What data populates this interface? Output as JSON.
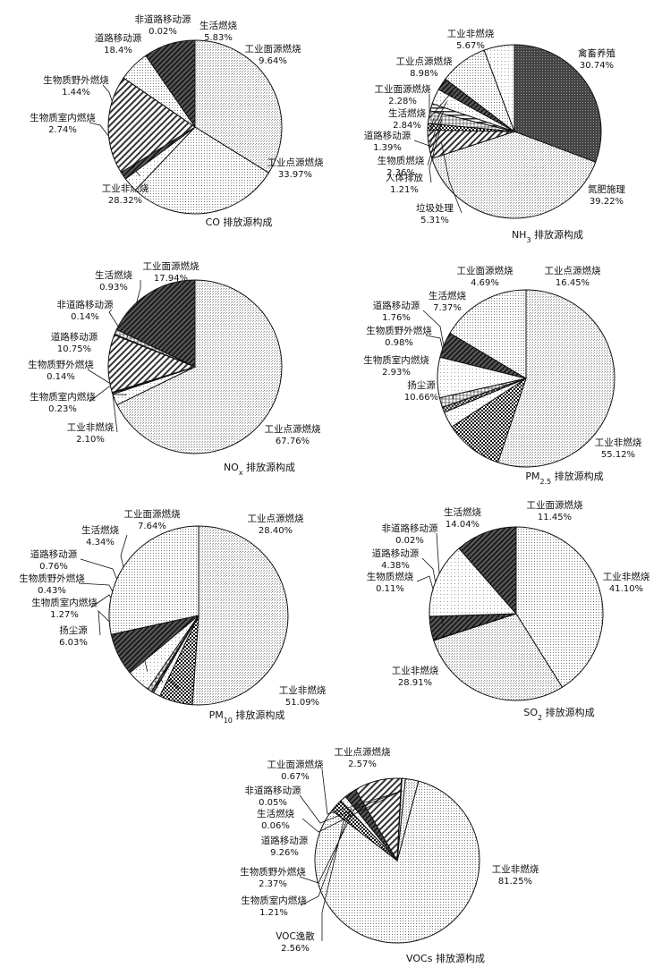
{
  "chart_data": [
    {
      "type": "pie",
      "title": "CO 排放源构成",
      "labels": [
        "工业点源燃烧",
        "工业非燃烧",
        "生物质室内燃烧",
        "生物质野外燃烧",
        "道路移动源",
        "非道路移动源",
        "生活燃烧",
        "工业面源燃烧"
      ],
      "values": [
        33.97,
        28.32,
        2.74,
        1.44,
        18.4,
        0.02,
        5.83,
        9.64
      ],
      "value_labels": [
        "33.97%",
        "28.32%",
        "2.74%",
        "1.44%",
        "18.4%",
        "0.02%",
        "5.83%",
        "9.64%"
      ]
    },
    {
      "type": "pie",
      "title": "NH",
      "title_sub": "3",
      "title_rest": " 排放源构成",
      "labels": [
        "禽畜养殖",
        "氮肥施理",
        "垃圾处理",
        "人体排放",
        "生物质燃烧",
        "道路移动源",
        "生活燃烧",
        "工业面源燃烧",
        "工业点源燃烧",
        "工业非燃烧"
      ],
      "values": [
        30.74,
        39.22,
        5.31,
        1.21,
        2.36,
        1.39,
        2.84,
        2.28,
        8.98,
        5.67
      ],
      "value_labels": [
        "30.74%",
        "39.22%",
        "5.31%",
        "1.21%",
        "2.36%",
        "1.39%",
        "2.84%",
        "2.28%",
        "8.98%",
        "5.67%"
      ]
    },
    {
      "type": "pie",
      "title": "NO",
      "title_sub": "x",
      "title_rest": " 排放源构成",
      "labels": [
        "工业点源燃烧",
        "工业非燃烧",
        "生物质室内燃烧",
        "生物质野外燃烧",
        "道路移动源",
        "非道路移动源",
        "生活燃烧",
        "工业面源燃烧"
      ],
      "values": [
        67.76,
        2.1,
        0.23,
        0.14,
        10.75,
        0.14,
        0.93,
        17.94
      ],
      "value_labels": [
        "67.76%",
        "2.10%",
        "0.23%",
        "0.14%",
        "10.75%",
        "0.14%",
        "0.93%",
        "17.94%"
      ]
    },
    {
      "type": "pie",
      "title": "PM",
      "title_sub": "2.5",
      "title_rest": " 排放源构成",
      "labels": [
        "工业非燃烧",
        "扬尘源",
        "生物质室内燃烧",
        "生物质野外燃烧",
        "道路移动源",
        "生活燃烧",
        "工业面源燃烧",
        "工业点源燃烧"
      ],
      "values": [
        55.12,
        10.66,
        2.93,
        0.98,
        1.76,
        7.37,
        4.69,
        16.45
      ],
      "value_labels": [
        "55.12%",
        "10.66%",
        "2.93%",
        "0.98%",
        "1.76%",
        "7.37%",
        "4.69%",
        "16.45%"
      ]
    },
    {
      "type": "pie",
      "title": "PM",
      "title_sub": "10",
      "title_rest": " 排放源构成",
      "labels": [
        "工业非燃烧",
        "扬尘源",
        "生物质室内燃烧",
        "生物质野外燃烧",
        "道路移动源",
        "生活燃烧",
        "工业面源燃烧",
        "工业点源燃烧"
      ],
      "values": [
        51.09,
        6.03,
        1.27,
        0.43,
        0.76,
        4.34,
        7.64,
        28.4
      ],
      "value_labels": [
        "51.09%",
        "6.03%",
        "1.27%",
        "0.43%",
        "0.76%",
        "4.34%",
        "7.64%",
        "28.40%"
      ]
    },
    {
      "type": "pie",
      "title": "SO",
      "title_sub": "2",
      "title_rest": " 排放源构成",
      "labels": [
        "工业非燃烧",
        "工业非燃烧",
        "生物质燃烧",
        "道路移动源",
        "非道路移动源",
        "生活燃烧",
        "工业面源燃烧"
      ],
      "values": [
        41.1,
        28.91,
        0.11,
        4.38,
        0.02,
        14.04,
        11.45
      ],
      "value_labels": [
        "41.10%",
        "28.91%",
        "0.11%",
        "4.38%",
        "0.02%",
        "14.04%",
        "11.45%"
      ]
    },
    {
      "type": "pie",
      "title": "VOCs 排放源构成",
      "labels": [
        "工业非燃烧",
        "VOC逸散",
        "生物质室内燃烧",
        "生物质野外燃烧",
        "道路移动源",
        "生活燃烧",
        "非道路移动源",
        "工业面源燃烧",
        "工业点源燃烧"
      ],
      "values": [
        81.25,
        2.56,
        1.21,
        2.37,
        9.26,
        0.06,
        0.05,
        0.67,
        2.57
      ],
      "value_labels": [
        "81.25%",
        "2.56%",
        "1.21%",
        "2.37%",
        "9.26%",
        "0.06%",
        "0.05%",
        "0.67%",
        "2.57%"
      ]
    }
  ]
}
